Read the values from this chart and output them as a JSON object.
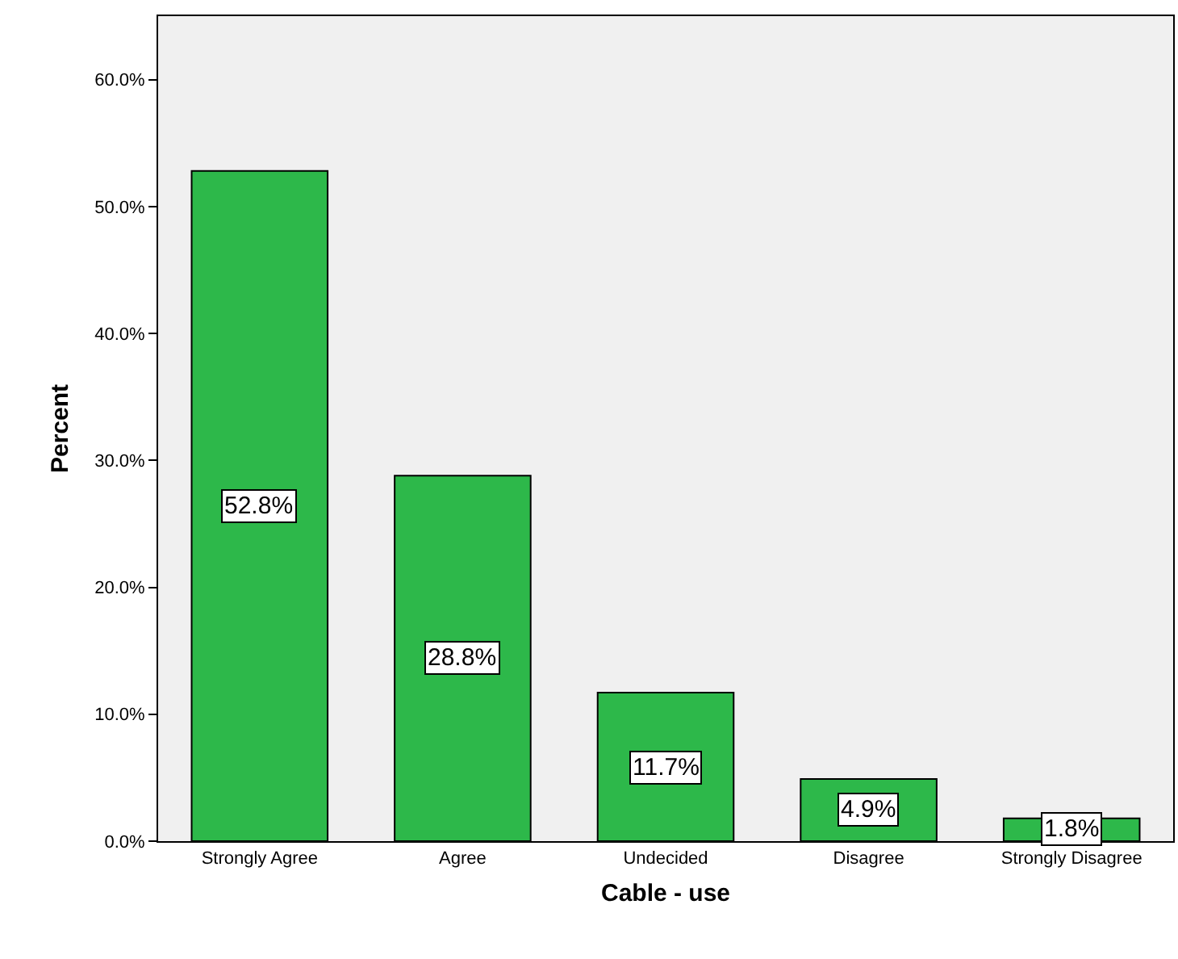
{
  "chart_data": {
    "type": "bar",
    "xlabel": "Cable - use",
    "ylabel": "Percent",
    "categories": [
      "Strongly Agree",
      "Agree",
      "Undecided",
      "Disagree",
      "Strongly Disagree"
    ],
    "values": [
      52.8,
      28.8,
      11.7,
      4.9,
      1.8
    ],
    "value_labels": [
      "52.8%",
      "28.8%",
      "11.7%",
      "4.9%",
      "1.8%"
    ],
    "color": "#2db84a",
    "ylim": [
      0,
      65
    ],
    "yticks": [
      {
        "value": 0,
        "label": "0.0%"
      },
      {
        "value": 10,
        "label": "10.0%"
      },
      {
        "value": 20,
        "label": "20.0%"
      },
      {
        "value": 30,
        "label": "30.0%"
      },
      {
        "value": 40,
        "label": "40.0%"
      },
      {
        "value": 50,
        "label": "50.0%"
      },
      {
        "value": 60,
        "label": "60.0%"
      }
    ]
  }
}
